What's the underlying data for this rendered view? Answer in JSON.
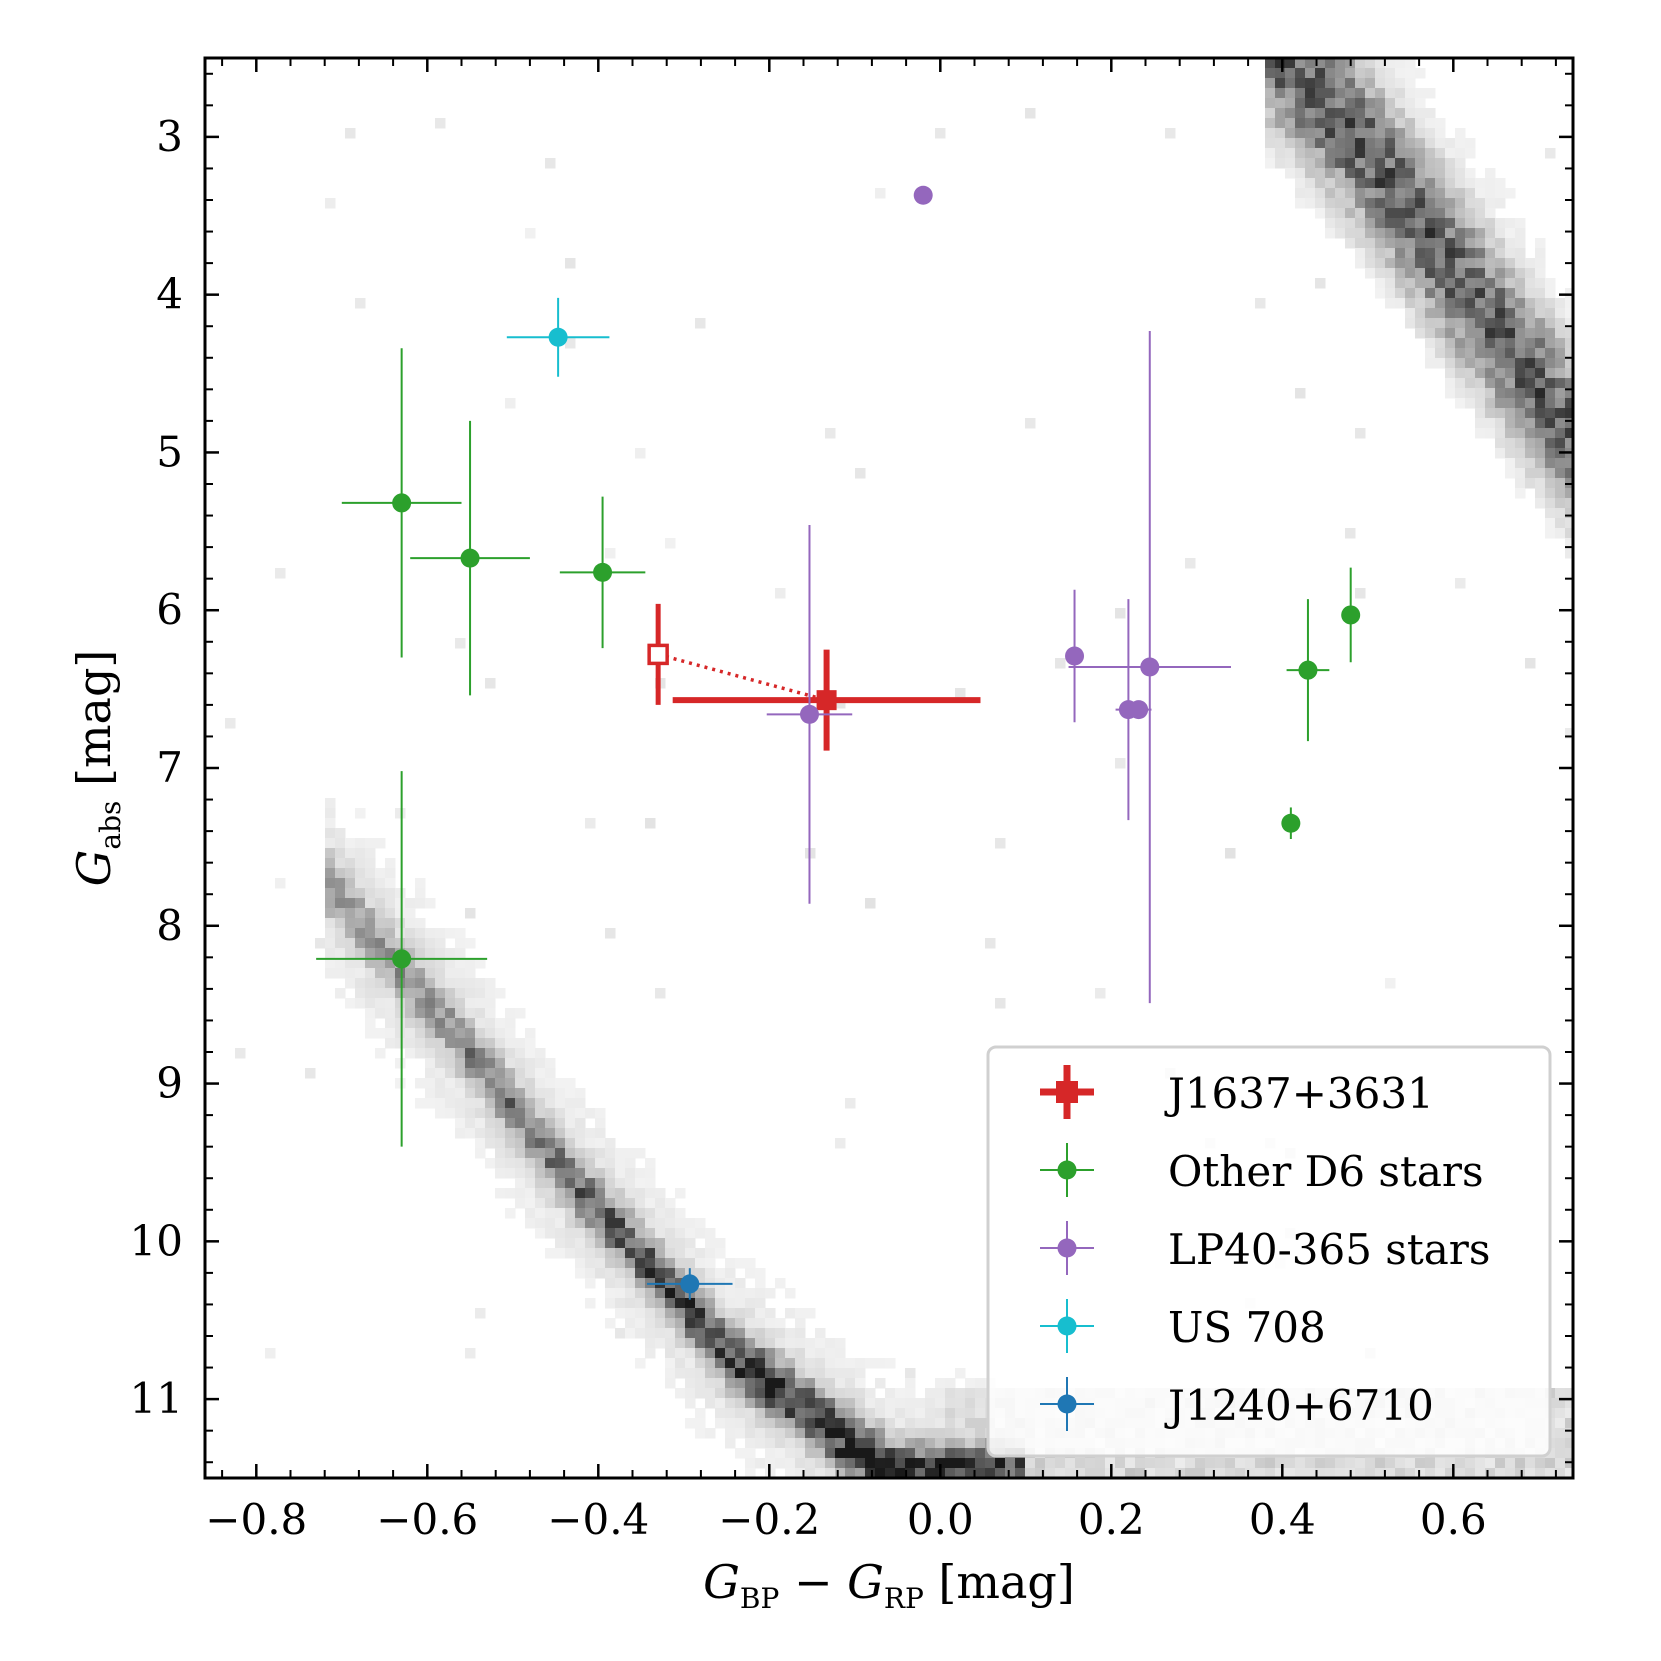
{
  "chart_data": {
    "type": "scatter",
    "title": "",
    "xlabel": {
      "base": "G",
      "sub1": "BP",
      "minus": " − ",
      "base2": "G",
      "sub2": "RP",
      "unit": " [mag]"
    },
    "ylabel": {
      "base": "G",
      "sub": "abs",
      "unit": " [mag]"
    },
    "xlim": [
      -0.86,
      0.74
    ],
    "ylim": [
      11.5,
      2.5
    ],
    "y_inverted": true,
    "x_ticks": [
      -0.8,
      -0.6,
      -0.4,
      -0.2,
      0.0,
      0.2,
      0.4,
      0.6
    ],
    "x_tick_labels": [
      "−0.8",
      "−0.6",
      "−0.4",
      "−0.2",
      "0.0",
      "0.2",
      "0.4",
      "0.6"
    ],
    "y_ticks": [
      3,
      4,
      5,
      6,
      7,
      8,
      9,
      10,
      11
    ],
    "y_tick_labels": [
      "3",
      "4",
      "5",
      "6",
      "7",
      "8",
      "9",
      "10",
      "11"
    ],
    "grid": false,
    "legend_position": "bottom-right",
    "background": {
      "type": "heatmap-density",
      "description_color": "#000000",
      "upper_sequence": {
        "x": [
          0.42,
          0.5,
          0.58,
          0.66,
          0.74
        ],
        "y": [
          2.6,
          3.1,
          3.7,
          4.3,
          4.9
        ]
      },
      "lower_sequence": {
        "x": [
          -0.66,
          -0.55,
          -0.45,
          -0.35,
          -0.25,
          -0.15,
          -0.05,
          0.05
        ],
        "y": [
          8.1,
          8.8,
          9.5,
          10.1,
          10.7,
          11.1,
          11.5,
          11.5
        ]
      }
    },
    "series": [
      {
        "name": "J1637+3631",
        "color": "#d62728",
        "marker": "plus-thick",
        "points": [
          {
            "x": -0.133,
            "y": 6.57,
            "xerr": 0.18,
            "yerr": 0.32
          }
        ],
        "open_point": {
          "x": -0.33,
          "y": 6.28,
          "yerr": 0.32
        },
        "connector": "dotted"
      },
      {
        "name": "Other D6 stars",
        "color": "#2ca02c",
        "marker": "circle",
        "points": [
          {
            "x": -0.63,
            "y": 5.32,
            "xerr": 0.07,
            "yerr": 0.98
          },
          {
            "x": -0.55,
            "y": 5.67,
            "xerr": 0.07,
            "yerr": 0.87
          },
          {
            "x": -0.395,
            "y": 5.76,
            "xerr": 0.05,
            "yerr": 0.48
          },
          {
            "x": -0.63,
            "y": 8.21,
            "xerr": 0.1,
            "yerr": 1.19
          },
          {
            "x": 0.48,
            "y": 6.03,
            "xerr": 0.0,
            "yerr": 0.3
          },
          {
            "x": 0.43,
            "y": 6.38,
            "xerr": 0.025,
            "yerr": 0.45
          },
          {
            "x": 0.41,
            "y": 7.35,
            "xerr": 0.01,
            "yerr": 0.1
          }
        ]
      },
      {
        "name": "LP40-365 stars",
        "color": "#9467bd",
        "marker": "circle",
        "points": [
          {
            "x": -0.02,
            "y": 3.37,
            "xerr": 0.0,
            "yerr": 0.0
          },
          {
            "x": -0.153,
            "y": 6.66,
            "xerr": 0.05,
            "yerr": 1.2
          },
          {
            "x": 0.157,
            "y": 6.29,
            "xerr": 0.01,
            "yerr": 0.42
          },
          {
            "x": 0.245,
            "y": 6.36,
            "xerr": 0.095,
            "yerr": 2.13
          },
          {
            "x": 0.22,
            "y": 6.63,
            "xerr": 0.015,
            "yerr": 0.7
          },
          {
            "x": 0.232,
            "y": 6.63,
            "xerr": 0.015,
            "yerr": 0.0
          }
        ]
      },
      {
        "name": "US 708",
        "color": "#17becf",
        "marker": "circle",
        "points": [
          {
            "x": -0.447,
            "y": 4.27,
            "xerr": 0.06,
            "yerr": 0.25
          }
        ]
      },
      {
        "name": "J1240+6710",
        "color": "#1f77b4",
        "marker": "circle",
        "points": [
          {
            "x": -0.293,
            "y": 10.27,
            "xerr": 0.05,
            "yerr": 0.1
          }
        ]
      }
    ]
  }
}
